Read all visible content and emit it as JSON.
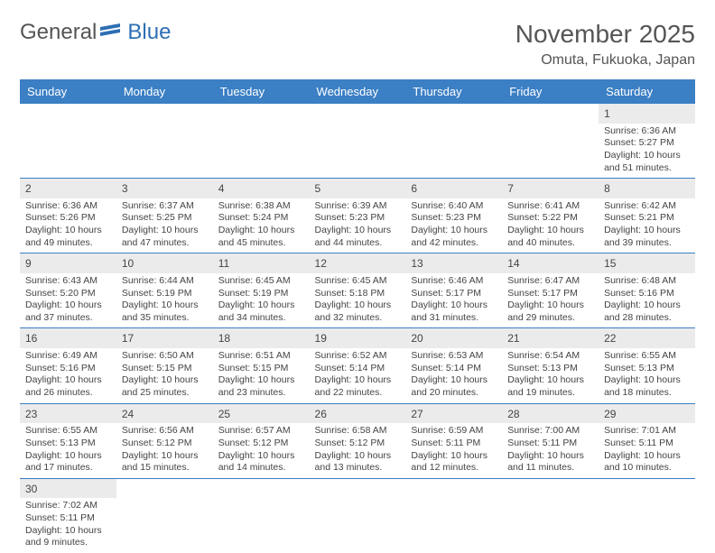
{
  "logo": {
    "text1": "General",
    "text2": "Blue"
  },
  "title": "November 2025",
  "location": "Omuta, Fukuoka, Japan",
  "colors": {
    "header_bg": "#3b7fc4",
    "header_fg": "#ffffff",
    "shade_bg": "#ebebeb",
    "text": "#444444",
    "accent": "#2e6fb4"
  },
  "weekdays": [
    "Sunday",
    "Monday",
    "Tuesday",
    "Wednesday",
    "Thursday",
    "Friday",
    "Saturday"
  ],
  "first_weekday_index": 6,
  "days": [
    {
      "n": 1,
      "sunrise": "6:36 AM",
      "sunset": "5:27 PM",
      "daylight": "10 hours and 51 minutes."
    },
    {
      "n": 2,
      "sunrise": "6:36 AM",
      "sunset": "5:26 PM",
      "daylight": "10 hours and 49 minutes."
    },
    {
      "n": 3,
      "sunrise": "6:37 AM",
      "sunset": "5:25 PM",
      "daylight": "10 hours and 47 minutes."
    },
    {
      "n": 4,
      "sunrise": "6:38 AM",
      "sunset": "5:24 PM",
      "daylight": "10 hours and 45 minutes."
    },
    {
      "n": 5,
      "sunrise": "6:39 AM",
      "sunset": "5:23 PM",
      "daylight": "10 hours and 44 minutes."
    },
    {
      "n": 6,
      "sunrise": "6:40 AM",
      "sunset": "5:23 PM",
      "daylight": "10 hours and 42 minutes."
    },
    {
      "n": 7,
      "sunrise": "6:41 AM",
      "sunset": "5:22 PM",
      "daylight": "10 hours and 40 minutes."
    },
    {
      "n": 8,
      "sunrise": "6:42 AM",
      "sunset": "5:21 PM",
      "daylight": "10 hours and 39 minutes."
    },
    {
      "n": 9,
      "sunrise": "6:43 AM",
      "sunset": "5:20 PM",
      "daylight": "10 hours and 37 minutes."
    },
    {
      "n": 10,
      "sunrise": "6:44 AM",
      "sunset": "5:19 PM",
      "daylight": "10 hours and 35 minutes."
    },
    {
      "n": 11,
      "sunrise": "6:45 AM",
      "sunset": "5:19 PM",
      "daylight": "10 hours and 34 minutes."
    },
    {
      "n": 12,
      "sunrise": "6:45 AM",
      "sunset": "5:18 PM",
      "daylight": "10 hours and 32 minutes."
    },
    {
      "n": 13,
      "sunrise": "6:46 AM",
      "sunset": "5:17 PM",
      "daylight": "10 hours and 31 minutes."
    },
    {
      "n": 14,
      "sunrise": "6:47 AM",
      "sunset": "5:17 PM",
      "daylight": "10 hours and 29 minutes."
    },
    {
      "n": 15,
      "sunrise": "6:48 AM",
      "sunset": "5:16 PM",
      "daylight": "10 hours and 28 minutes."
    },
    {
      "n": 16,
      "sunrise": "6:49 AM",
      "sunset": "5:16 PM",
      "daylight": "10 hours and 26 minutes."
    },
    {
      "n": 17,
      "sunrise": "6:50 AM",
      "sunset": "5:15 PM",
      "daylight": "10 hours and 25 minutes."
    },
    {
      "n": 18,
      "sunrise": "6:51 AM",
      "sunset": "5:15 PM",
      "daylight": "10 hours and 23 minutes."
    },
    {
      "n": 19,
      "sunrise": "6:52 AM",
      "sunset": "5:14 PM",
      "daylight": "10 hours and 22 minutes."
    },
    {
      "n": 20,
      "sunrise": "6:53 AM",
      "sunset": "5:14 PM",
      "daylight": "10 hours and 20 minutes."
    },
    {
      "n": 21,
      "sunrise": "6:54 AM",
      "sunset": "5:13 PM",
      "daylight": "10 hours and 19 minutes."
    },
    {
      "n": 22,
      "sunrise": "6:55 AM",
      "sunset": "5:13 PM",
      "daylight": "10 hours and 18 minutes."
    },
    {
      "n": 23,
      "sunrise": "6:55 AM",
      "sunset": "5:13 PM",
      "daylight": "10 hours and 17 minutes."
    },
    {
      "n": 24,
      "sunrise": "6:56 AM",
      "sunset": "5:12 PM",
      "daylight": "10 hours and 15 minutes."
    },
    {
      "n": 25,
      "sunrise": "6:57 AM",
      "sunset": "5:12 PM",
      "daylight": "10 hours and 14 minutes."
    },
    {
      "n": 26,
      "sunrise": "6:58 AM",
      "sunset": "5:12 PM",
      "daylight": "10 hours and 13 minutes."
    },
    {
      "n": 27,
      "sunrise": "6:59 AM",
      "sunset": "5:11 PM",
      "daylight": "10 hours and 12 minutes."
    },
    {
      "n": 28,
      "sunrise": "7:00 AM",
      "sunset": "5:11 PM",
      "daylight": "10 hours and 11 minutes."
    },
    {
      "n": 29,
      "sunrise": "7:01 AM",
      "sunset": "5:11 PM",
      "daylight": "10 hours and 10 minutes."
    },
    {
      "n": 30,
      "sunrise": "7:02 AM",
      "sunset": "5:11 PM",
      "daylight": "10 hours and 9 minutes."
    }
  ],
  "labels": {
    "sunrise": "Sunrise:",
    "sunset": "Sunset:",
    "daylight": "Daylight:"
  }
}
